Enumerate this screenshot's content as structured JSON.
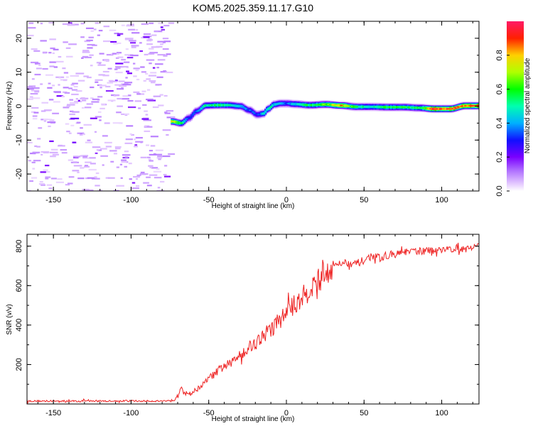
{
  "chart_data": [
    {
      "type": "heatmap",
      "title": "KOM5.2025.359.11.17.G10",
      "xlabel": "Height of straight line (km)",
      "ylabel": "Frequency (Hz)",
      "xlim": [
        -167,
        124
      ],
      "ylim": [
        -25,
        25
      ],
      "x_ticks": [
        -150,
        -100,
        -50,
        0,
        50,
        100
      ],
      "y_ticks": [
        -20,
        -10,
        0,
        10,
        20
      ],
      "colorbar": {
        "label": "Normalized spectral amplitude",
        "range": [
          0,
          1
        ],
        "ticks": [
          0.0,
          0.2,
          0.4,
          0.6,
          0.8
        ]
      },
      "noise_region_km": [
        -167,
        -76
      ],
      "signal_track": {
        "x": [
          -74,
          -68,
          -63,
          -58,
          -52,
          -45,
          -38,
          -30,
          -24,
          -19,
          -15,
          -12,
          -8,
          -4,
          0,
          5,
          15,
          25,
          35,
          45,
          55,
          65,
          75,
          85,
          95,
          105,
          115,
          124
        ],
        "freq_hz": [
          -4.5,
          -5,
          -3.5,
          -1.5,
          0.2,
          0.3,
          0.3,
          0,
          -1.2,
          -2.5,
          -2.2,
          -0.8,
          0.5,
          0.8,
          0.8,
          0.6,
          0.3,
          0.5,
          0.2,
          -0.2,
          -0.2,
          -0.3,
          -0.3,
          -0.5,
          -0.8,
          -0.8,
          0.1,
          0.1
        ],
        "amplitude": [
          0.75,
          0.55,
          0.3,
          0.35,
          0.5,
          0.55,
          0.5,
          0.45,
          0.35,
          0.3,
          0.45,
          0.5,
          0.45,
          0.4,
          0.35,
          0.45,
          0.55,
          0.65,
          0.8,
          0.55,
          0.5,
          0.55,
          0.55,
          0.55,
          0.95,
          0.9,
          0.85,
          0.9
        ]
      }
    },
    {
      "type": "line",
      "xlabel": "Height of straight line (km)",
      "ylabel": "SNR (v/v)",
      "xlim": [
        -167,
        124
      ],
      "ylim": [
        0,
        860
      ],
      "x_ticks": [
        -150,
        -100,
        -50,
        0,
        50,
        100
      ],
      "y_ticks": [
        200,
        400,
        600,
        800
      ],
      "series": [
        {
          "name": "SNR",
          "color": "#ee2222",
          "x": [
            -167,
            -150,
            -125,
            -100,
            -80,
            -72,
            -68,
            -66,
            -62,
            -55,
            -50,
            -45,
            -40,
            -35,
            -30,
            -25,
            -20,
            -15,
            -10,
            -5,
            0,
            5,
            10,
            15,
            20,
            25,
            30,
            35,
            40,
            45,
            50,
            55,
            60,
            65,
            70,
            75,
            80,
            85,
            90,
            95,
            100,
            105,
            110,
            115,
            120,
            124
          ],
          "values": [
            15,
            15,
            15,
            15,
            15,
            20,
            80,
            55,
            50,
            90,
            130,
            160,
            190,
            210,
            250,
            280,
            310,
            340,
            380,
            420,
            460,
            500,
            540,
            580,
            620,
            660,
            700,
            720,
            715,
            710,
            730,
            750,
            740,
            755,
            760,
            765,
            770,
            775,
            775,
            780,
            785,
            785,
            790,
            790,
            795,
            800
          ]
        }
      ]
    }
  ]
}
